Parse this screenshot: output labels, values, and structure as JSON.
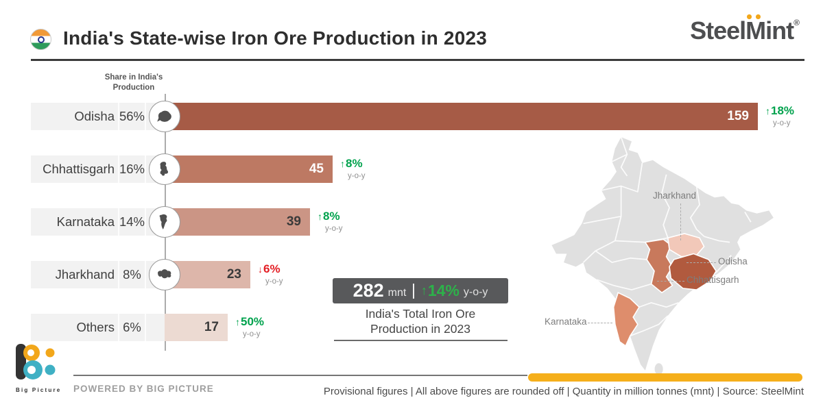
{
  "header": {
    "title": "India's State-wise Iron Ore Production in 2023",
    "brand": {
      "part1": "Steel",
      "part2": "M",
      "part3": "int",
      "reg": "®"
    }
  },
  "icons": {
    "up_arrow": "↑",
    "down_arrow": "↓"
  },
  "colors": {
    "green": "#00A24D",
    "red": "#E31E24",
    "badge_bg": "#58595B",
    "yellow": "#F5AF1B",
    "row_bg": "#F2F2F2",
    "map_base": "#E0E0E0"
  },
  "chart_data": {
    "type": "bar",
    "title": "India's State-wise Iron Ore Production in 2023",
    "column_header": "Share in India's Production",
    "unit": "mnt",
    "xlim": [
      0,
      165
    ],
    "categories": [
      "Odisha",
      "Chhattisgarh",
      "Karnataka",
      "Jharkhand",
      "Others"
    ],
    "values": [
      159,
      45,
      39,
      23,
      17
    ],
    "shares_pct": [
      56,
      16,
      14,
      8,
      6
    ],
    "yoy_change_pct": [
      18,
      8,
      8,
      -6,
      50
    ],
    "yoy_suffix": "y-o-y",
    "rows": [
      {
        "state": "Odisha",
        "share": "56%",
        "value": "159",
        "yoy_pct": "18%",
        "direction": "up",
        "bar_color": "#A65B46",
        "value_label_color": "#FFFFFF",
        "icon": "odisha"
      },
      {
        "state": "Chhattisgarh",
        "share": "16%",
        "value": "45",
        "yoy_pct": "8%",
        "direction": "up",
        "bar_color": "#BD7963",
        "value_label_color": "#FFFFFF",
        "icon": "chhattisgarh"
      },
      {
        "state": "Karnataka",
        "share": "14%",
        "value": "39",
        "yoy_pct": "8%",
        "direction": "up",
        "bar_color": "#CB9585",
        "value_label_color": "#3A3A3A",
        "icon": "karnataka"
      },
      {
        "state": "Jharkhand",
        "share": "8%",
        "value": "23",
        "yoy_pct": "6%",
        "direction": "down",
        "bar_color": "#DDB6AA",
        "value_label_color": "#3A3A3A",
        "icon": "jharkhand"
      },
      {
        "state": "Others",
        "share": "6%",
        "value": "17",
        "yoy_pct": "50%",
        "direction": "up",
        "bar_color": "#ECDAD2",
        "value_label_color": "#3A3A3A",
        "icon": null
      }
    ],
    "total": {
      "value": "282",
      "unit": "mnt",
      "yoy_pct": "14%",
      "direction": "up",
      "yoy_suffix": "y-o-y",
      "caption_line1": "India's Total Iron Ore",
      "caption_line2": "Production in 2023"
    }
  },
  "map": {
    "labels": {
      "jharkhand": "Jharkhand",
      "odisha": "Odisha",
      "chhattisgarh": "Chhattisgarh",
      "karnataka": "Karnataka"
    },
    "state_colors": {
      "odisha": "#B15A3E",
      "chhattisgarh": "#C8795C",
      "jharkhand": "#F2C8B9",
      "karnataka": "#DE8D6C"
    }
  },
  "footer": {
    "brand_name": "Big Picture",
    "powered_by": "POWERED BY BIG PICTURE",
    "note": "Provisional figures  |  All above figures are rounded off  |  Quantity in million tonnes (mnt)  |  Source: SteelMint"
  }
}
